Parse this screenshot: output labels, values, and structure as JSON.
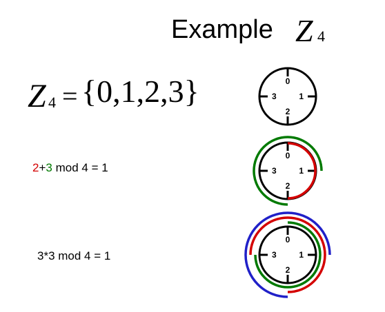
{
  "title": {
    "text": "Example",
    "symbol": "Z",
    "subscript": "4"
  },
  "set_definition": {
    "symbol": "Z",
    "subscript": "4",
    "equals": "=",
    "set": "{0,1,2,3}"
  },
  "examples": [
    {
      "parts": [
        {
          "text": "2",
          "color": "#d40000"
        },
        {
          "text": "+",
          "color": "#000000"
        },
        {
          "text": "3",
          "color": "#007a00"
        },
        {
          "text": " mod 4 = 1",
          "color": "#000000"
        }
      ]
    },
    {
      "parts": [
        {
          "text": "3*3 mod 4 = 1",
          "color": "#000000"
        }
      ]
    }
  ],
  "clock_labels": {
    "top": "0",
    "right": "1",
    "bottom": "2",
    "left": "3"
  },
  "colors": {
    "red": "#d40000",
    "green": "#007a00",
    "blue": "#2020c8",
    "ink": "#000000"
  }
}
